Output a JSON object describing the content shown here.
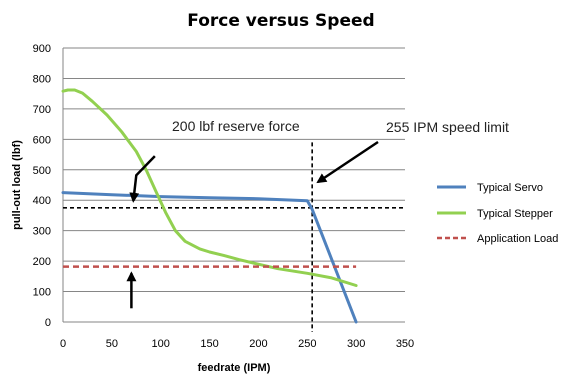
{
  "chart_data": {
    "type": "line",
    "title": "Force versus Speed",
    "xlabel": "feedrate (IPM)",
    "ylabel": "pull-out load (lbf)",
    "xlim": [
      0,
      350
    ],
    "ylim": [
      0,
      900
    ],
    "xticks": [
      0,
      50,
      100,
      150,
      200,
      250,
      300,
      350
    ],
    "yticks": [
      0,
      100,
      200,
      300,
      400,
      500,
      600,
      700,
      800,
      900
    ],
    "grid": "horizontal",
    "legend_position": "right",
    "series": [
      {
        "name": "Typical Servo",
        "color": "#4F81BD",
        "style": "solid",
        "x": [
          0,
          50,
          100,
          150,
          200,
          250,
          255,
          300
        ],
        "y": [
          425,
          418,
          412,
          408,
          405,
          398,
          370,
          0
        ]
      },
      {
        "name": "Typical Stepper",
        "color": "#92D050",
        "style": "solid",
        "x": [
          0,
          5,
          12,
          20,
          30,
          45,
          60,
          75,
          85,
          95,
          105,
          115,
          125,
          140,
          150,
          165,
          180,
          200,
          220,
          250,
          275,
          300
        ],
        "y": [
          758,
          762,
          762,
          752,
          725,
          680,
          625,
          560,
          500,
          430,
          360,
          300,
          265,
          240,
          230,
          218,
          205,
          190,
          175,
          160,
          145,
          120
        ]
      },
      {
        "name": "Application Load",
        "color": "#C0504D",
        "style": "dashed",
        "x": [
          0,
          300
        ],
        "y": [
          182,
          182
        ]
      }
    ],
    "reference_lines": [
      {
        "orientation": "horizontal",
        "value": 375,
        "color": "#000000",
        "style": "dashed"
      },
      {
        "orientation": "vertical",
        "value": 255,
        "color": "#000000",
        "style": "dashed"
      }
    ],
    "annotations": [
      {
        "text": "200 lbf reserve force"
      },
      {
        "text": "255 IPM speed limit"
      }
    ]
  }
}
